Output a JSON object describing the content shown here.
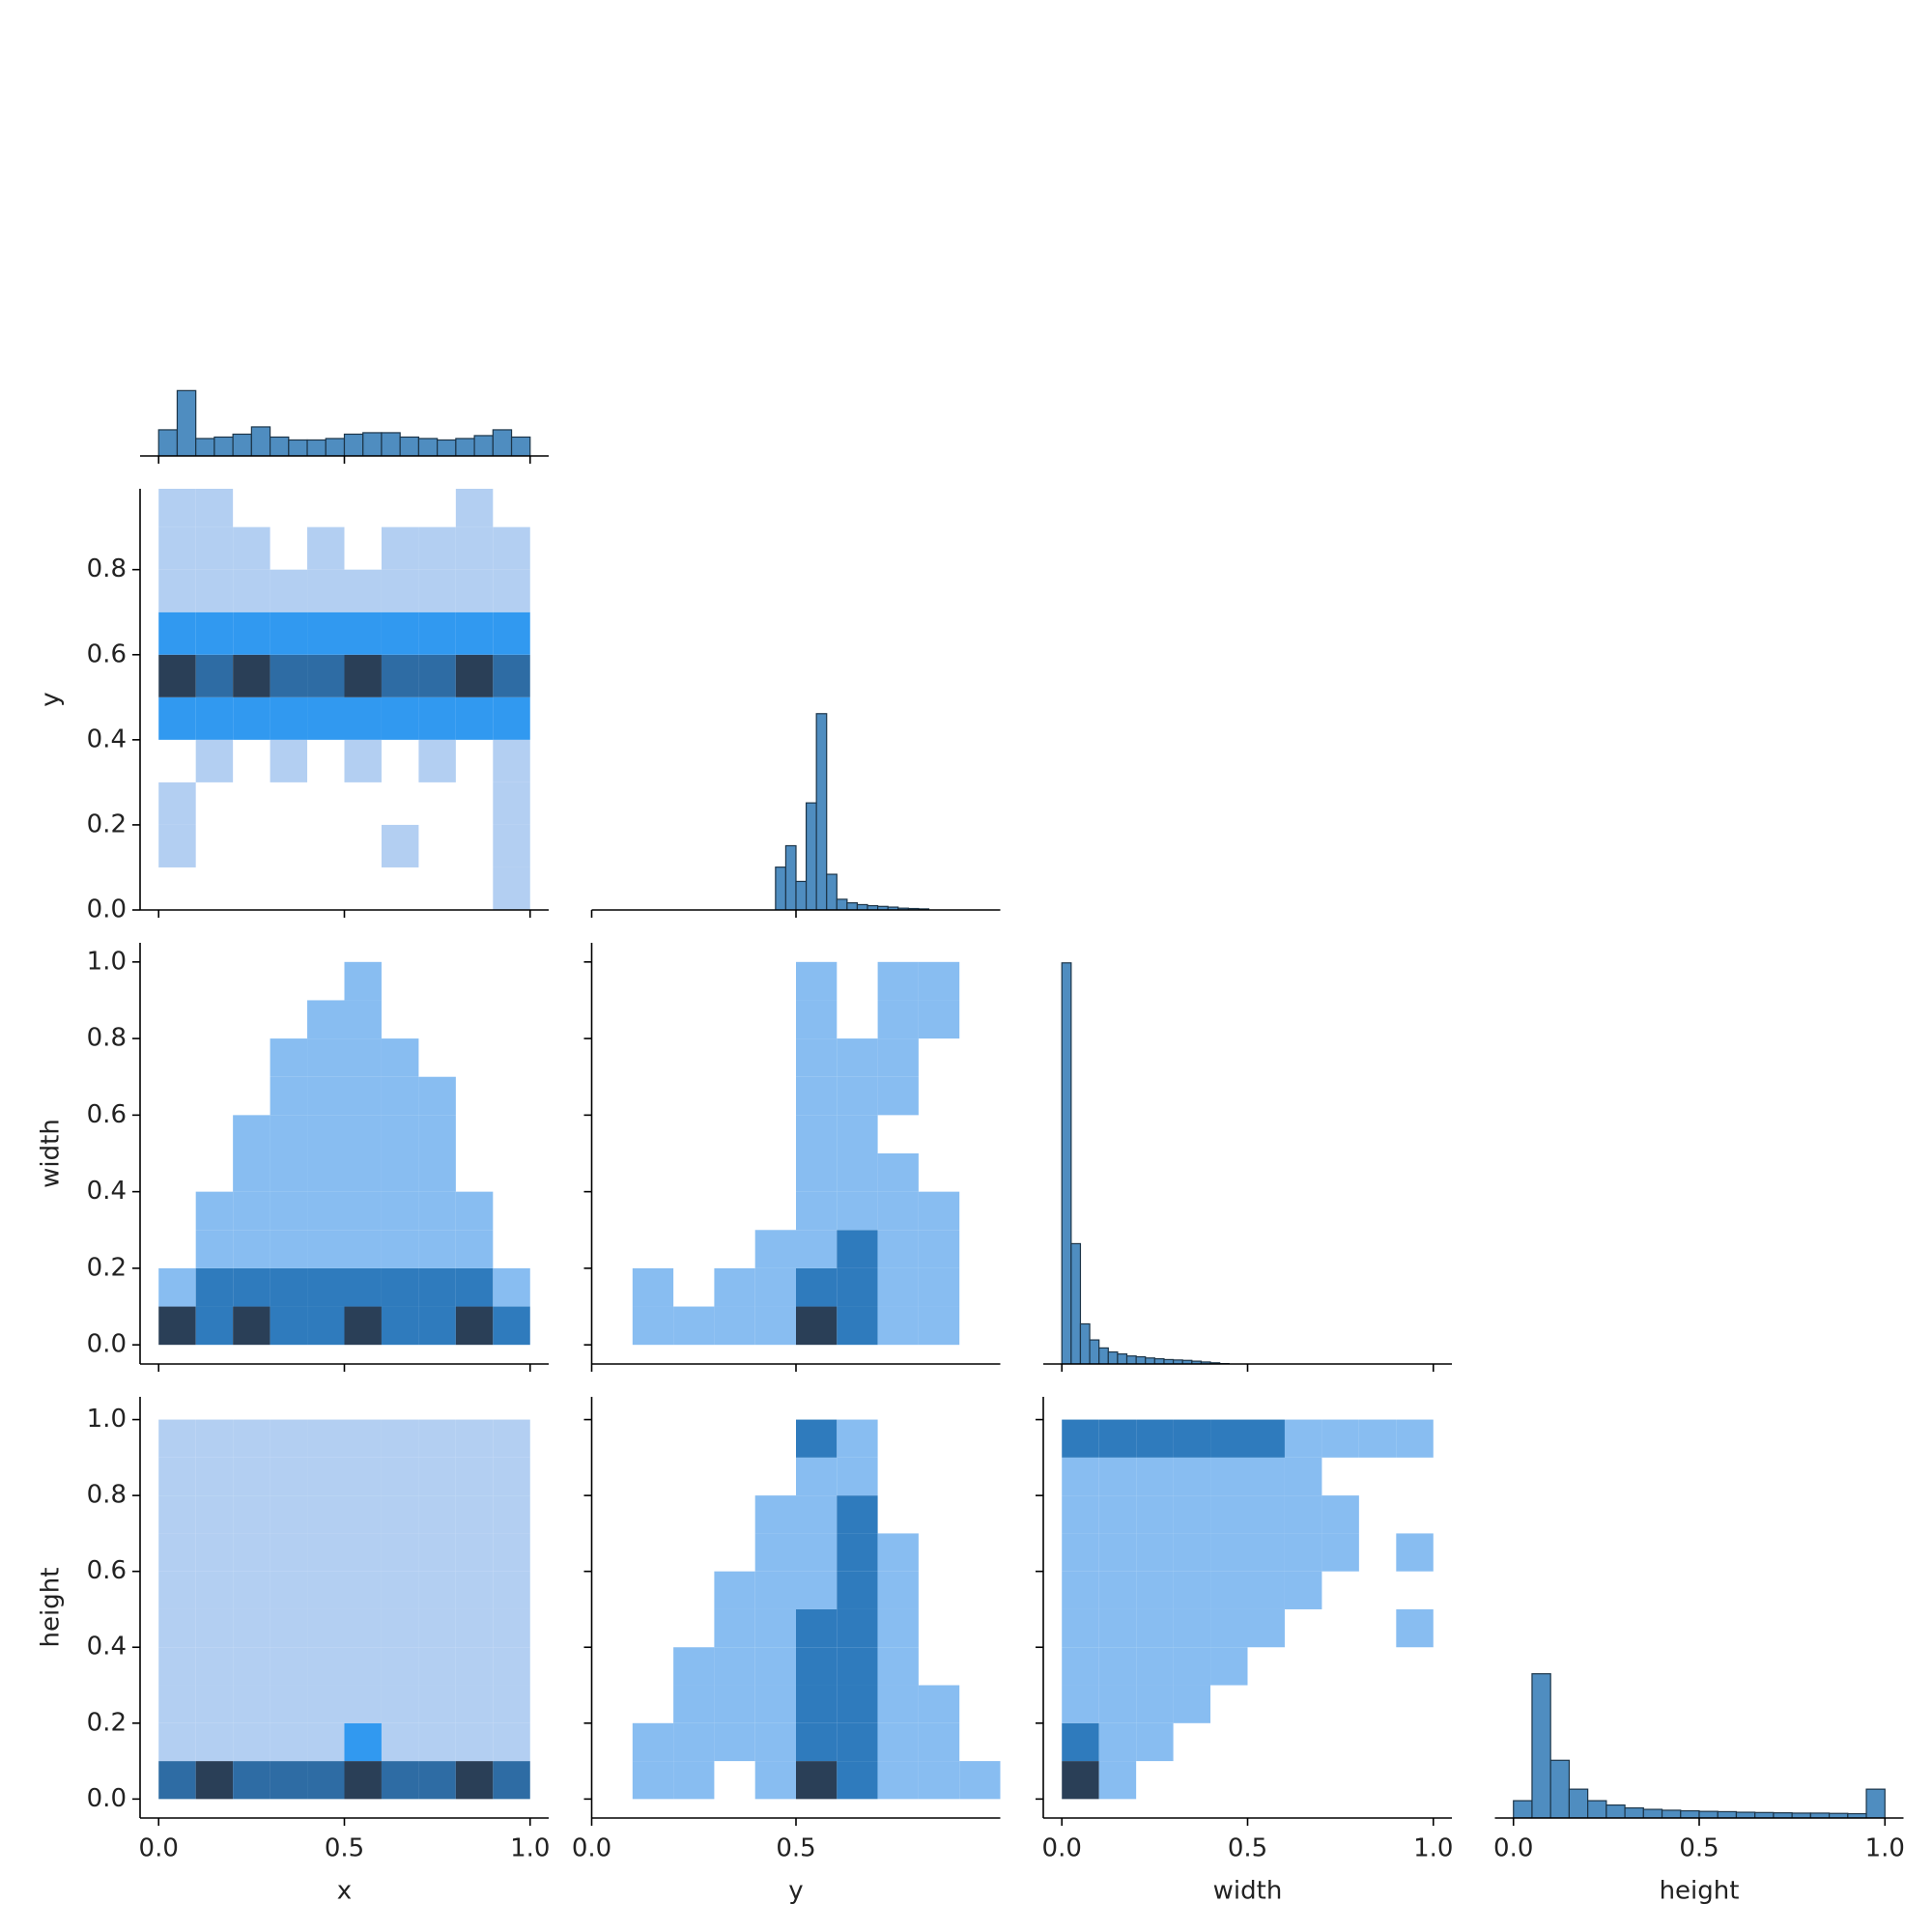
{
  "chart_data": [
    {
      "type": "histogram",
      "color": "#4f8dc0",
      "edgecolor": "#1c3549",
      "bins": [
        0,
        0.05,
        0.1,
        0.15,
        0.2,
        0.25,
        0.3,
        0.35,
        0.4,
        0.45,
        0.5,
        0.55,
        0.6,
        0.65,
        0.7,
        0.75,
        0.8,
        0.85,
        0.9,
        0.95,
        1.0
      ],
      "values": [
        18,
        45,
        12,
        13,
        15,
        20,
        13,
        11,
        11,
        12,
        15,
        16,
        16,
        13,
        12,
        11,
        12,
        14,
        18,
        13
      ],
      "xlim": [
        -0.05,
        1.05
      ],
      "ylim": [
        0,
        290
      ],
      "xticks": [
        0,
        0.5,
        1
      ]
    },
    {
      "type": "heatmap",
      "colormap": [
        "#b3cff2",
        "#3199f0",
        "#2a3f57"
      ],
      "xbins": [
        0,
        0.1,
        0.2,
        0.3,
        0.4,
        0.5,
        0.6,
        0.7,
        0.8,
        0.9,
        1.0
      ],
      "ybins": [
        0,
        0.1,
        0.2,
        0.3,
        0.4,
        0.5,
        0.6,
        0.7,
        0.8,
        0.9,
        1.0
      ],
      "counts": [
        [
          0,
          0,
          0,
          0,
          0,
          0,
          0,
          0,
          0,
          1
        ],
        [
          1,
          0,
          0,
          0,
          0,
          0,
          1,
          0,
          0,
          1
        ],
        [
          1,
          0,
          0,
          0,
          0,
          0,
          0,
          0,
          0,
          1
        ],
        [
          0,
          1,
          0,
          1,
          0,
          1,
          0,
          1,
          0,
          1
        ],
        [
          2,
          2,
          2,
          2,
          2,
          2,
          2,
          2,
          2,
          2
        ],
        [
          4,
          3,
          4,
          3,
          3,
          4,
          3,
          3,
          4,
          3
        ],
        [
          2,
          2,
          2,
          2,
          2,
          2,
          2,
          2,
          2,
          2
        ],
        [
          1,
          1,
          1,
          1,
          1,
          1,
          1,
          1,
          1,
          1
        ],
        [
          1,
          1,
          1,
          0,
          1,
          0,
          1,
          1,
          1,
          1
        ],
        [
          1,
          1,
          0,
          0,
          0,
          0,
          0,
          0,
          1,
          0
        ]
      ],
      "xlim": [
        -0.05,
        1.05
      ],
      "ylim": [
        0,
        0.99
      ],
      "xticks": [
        0,
        0.5,
        1
      ],
      "yticks": [
        {
          "value": 0,
          "label": "0.0"
        },
        0.2,
        0.4,
        0.6,
        0.8
      ],
      "ylabel": "y"
    },
    {
      "type": "histogram",
      "color": "#4f8dc0",
      "edgecolor": "#1c3549",
      "bins": [
        0.45,
        0.475,
        0.5,
        0.525,
        0.55,
        0.575,
        0.6,
        0.625,
        0.65,
        0.675,
        0.7,
        0.725,
        0.75,
        0.775,
        0.8,
        0.825
      ],
      "values": [
        12,
        18,
        8,
        30,
        55,
        10,
        3,
        2,
        1.5,
        1.2,
        1,
        0.8,
        0.5,
        0.4,
        0.3
      ],
      "xlim": [
        0,
        1.0
      ],
      "ylim": [
        0,
        118
      ],
      "xticks": [
        0,
        0.5
      ]
    },
    {
      "type": "heatmap",
      "colormap": [
        "#b3cff2",
        "#3199f0",
        "#2a3f57"
      ],
      "xbins": [
        0,
        0.1,
        0.2,
        0.3,
        0.4,
        0.5,
        0.6,
        0.7,
        0.8,
        0.9,
        1.0
      ],
      "ybins": [
        0,
        0.1,
        0.2,
        0.3,
        0.4,
        0.5,
        0.6,
        0.7,
        0.8,
        0.9,
        1.0
      ],
      "counts": [
        [
          3,
          2,
          3,
          2,
          2,
          3,
          2,
          2,
          3,
          2
        ],
        [
          1,
          2,
          2,
          2,
          2,
          2,
          2,
          2,
          2,
          1
        ],
        [
          0,
          1,
          1,
          1,
          1,
          1,
          1,
          1,
          1,
          0
        ],
        [
          0,
          1,
          1,
          1,
          1,
          1,
          1,
          1,
          1,
          0
        ],
        [
          0,
          0,
          1,
          1,
          1,
          1,
          1,
          1,
          0,
          0
        ],
        [
          0,
          0,
          1,
          1,
          1,
          1,
          1,
          1,
          0,
          0
        ],
        [
          0,
          0,
          0,
          1,
          1,
          1,
          1,
          1,
          0,
          0
        ],
        [
          0,
          0,
          0,
          1,
          1,
          1,
          1,
          0,
          0,
          0
        ],
        [
          0,
          0,
          0,
          0,
          1,
          1,
          0,
          0,
          0,
          0
        ],
        [
          0,
          0,
          0,
          0,
          0,
          1,
          0,
          0,
          0,
          0
        ]
      ],
      "xlim": [
        -0.05,
        1.05
      ],
      "ylim": [
        -0.05,
        1.05
      ],
      "xticks": [
        0,
        0.5,
        1
      ],
      "yticks": [
        {
          "value": 0,
          "label": "0.0"
        },
        0.2,
        0.4,
        0.6,
        0.8,
        {
          "value": 1,
          "label": "1.0"
        }
      ],
      "ylabel": "width"
    },
    {
      "type": "heatmap",
      "colormap": [
        "#b3cff2",
        "#3199f0",
        "#2a3f57"
      ],
      "xbins": [
        0,
        0.1,
        0.2,
        0.3,
        0.4,
        0.5,
        0.6,
        0.7,
        0.8,
        0.9,
        1.0
      ],
      "ybins": [
        0,
        0.1,
        0.2,
        0.3,
        0.4,
        0.5,
        0.6,
        0.7,
        0.8,
        0.9,
        1.0
      ],
      "counts": [
        [
          0,
          1,
          1,
          1,
          1,
          3,
          2,
          1,
          1,
          0
        ],
        [
          0,
          1,
          0,
          1,
          1,
          2,
          2,
          1,
          1,
          0
        ],
        [
          0,
          0,
          0,
          0,
          1,
          1,
          2,
          1,
          1,
          0
        ],
        [
          0,
          0,
          0,
          0,
          0,
          1,
          1,
          1,
          1,
          0
        ],
        [
          0,
          0,
          0,
          0,
          0,
          1,
          1,
          1,
          0,
          0
        ],
        [
          0,
          0,
          0,
          0,
          0,
          1,
          1,
          0,
          0,
          0
        ],
        [
          0,
          0,
          0,
          0,
          0,
          1,
          1,
          1,
          0,
          0
        ],
        [
          0,
          0,
          0,
          0,
          0,
          1,
          1,
          1,
          0,
          0
        ],
        [
          0,
          0,
          0,
          0,
          0,
          1,
          0,
          1,
          1,
          0
        ],
        [
          0,
          0,
          0,
          0,
          0,
          1,
          0,
          1,
          1,
          0
        ]
      ],
      "xlim": [
        0,
        1.0
      ],
      "ylim": [
        -0.05,
        1.05
      ],
      "xticks": [
        0,
        0.5
      ],
      "yticks": [
        0,
        0.2,
        0.4,
        0.6,
        0.8,
        1
      ]
    },
    {
      "type": "histogram",
      "color": "#4f8dc0",
      "edgecolor": "#1c3549",
      "bins": [
        0,
        0.025,
        0.05,
        0.075,
        0.1,
        0.125,
        0.15,
        0.175,
        0.2,
        0.225,
        0.25,
        0.275,
        0.3,
        0.325,
        0.35,
        0.375,
        0.4,
        0.425,
        0.45
      ],
      "values": [
        100,
        30,
        10,
        6,
        4,
        3,
        2.5,
        2,
        1.8,
        1.5,
        1.3,
        1.1,
        1,
        0.9,
        0.7,
        0.5,
        0.3,
        0.1
      ],
      "xlim": [
        -0.05,
        1.05
      ],
      "ylim": [
        0,
        105
      ],
      "xticks": [
        0,
        0.5,
        1
      ]
    },
    {
      "type": "heatmap",
      "colormap": [
        "#b3cff2",
        "#3199f0",
        "#2a3f57"
      ],
      "xbins": [
        0,
        0.1,
        0.2,
        0.3,
        0.4,
        0.5,
        0.6,
        0.7,
        0.8,
        0.9,
        1.0
      ],
      "ybins": [
        0,
        0.1,
        0.2,
        0.3,
        0.4,
        0.5,
        0.6,
        0.7,
        0.8,
        0.9,
        1.0
      ],
      "counts": [
        [
          3,
          4,
          3,
          3,
          3,
          4,
          3,
          3,
          4,
          3
        ],
        [
          1,
          1,
          1,
          1,
          1,
          2,
          1,
          1,
          1,
          1
        ],
        [
          1,
          1,
          1,
          1,
          1,
          1,
          1,
          1,
          1,
          1
        ],
        [
          1,
          1,
          1,
          1,
          1,
          1,
          1,
          1,
          1,
          1
        ],
        [
          1,
          1,
          1,
          1,
          1,
          1,
          1,
          1,
          1,
          1
        ],
        [
          1,
          1,
          1,
          1,
          1,
          1,
          1,
          1,
          1,
          1
        ],
        [
          1,
          1,
          1,
          1,
          1,
          1,
          1,
          1,
          1,
          1
        ],
        [
          1,
          1,
          1,
          1,
          1,
          1,
          1,
          1,
          1,
          1
        ],
        [
          1,
          1,
          1,
          1,
          1,
          1,
          1,
          1,
          1,
          1
        ],
        [
          1,
          1,
          1,
          1,
          1,
          1,
          1,
          1,
          1,
          1
        ]
      ],
      "xlim": [
        -0.05,
        1.05
      ],
      "ylim": [
        -0.05,
        1.06
      ],
      "xticks": [
        {
          "value": 0,
          "label": "0.0"
        },
        0.5,
        {
          "value": 1,
          "label": "1.0"
        }
      ],
      "yticks": [
        {
          "value": 0,
          "label": "0.0"
        },
        0.2,
        0.4,
        0.6,
        0.8,
        {
          "value": 1,
          "label": "1.0"
        }
      ],
      "xlabel": "x",
      "ylabel": "height"
    },
    {
      "type": "heatmap",
      "colormap": [
        "#b3cff2",
        "#3199f0",
        "#2a3f57"
      ],
      "xbins": [
        0,
        0.1,
        0.2,
        0.3,
        0.4,
        0.5,
        0.6,
        0.7,
        0.8,
        0.9,
        1.0
      ],
      "ybins": [
        0,
        0.1,
        0.2,
        0.3,
        0.4,
        0.5,
        0.6,
        0.7,
        0.8,
        0.9,
        1.0
      ],
      "counts": [
        [
          0,
          1,
          1,
          0,
          1,
          3,
          2,
          1,
          1,
          1
        ],
        [
          0,
          1,
          1,
          1,
          1,
          2,
          2,
          1,
          1,
          0
        ],
        [
          0,
          0,
          1,
          1,
          1,
          2,
          2,
          1,
          1,
          0
        ],
        [
          0,
          0,
          1,
          1,
          1,
          2,
          2,
          1,
          0,
          0
        ],
        [
          0,
          0,
          0,
          1,
          1,
          2,
          2,
          1,
          0,
          0
        ],
        [
          0,
          0,
          0,
          1,
          1,
          1,
          2,
          1,
          0,
          0
        ],
        [
          0,
          0,
          0,
          0,
          1,
          1,
          2,
          1,
          0,
          0
        ],
        [
          0,
          0,
          0,
          0,
          1,
          1,
          2,
          0,
          0,
          0
        ],
        [
          0,
          0,
          0,
          0,
          0,
          1,
          1,
          0,
          0,
          0
        ],
        [
          0,
          0,
          0,
          0,
          0,
          2,
          1,
          0,
          0,
          0
        ]
      ],
      "xlim": [
        0,
        1.0
      ],
      "ylim": [
        -0.05,
        1.06
      ],
      "xticks": [
        {
          "value": 0,
          "label": "0.0"
        },
        0.5
      ],
      "yticks": [
        0,
        0.2,
        0.4,
        0.6,
        0.8,
        1
      ],
      "xlabel": "y"
    },
    {
      "type": "heatmap",
      "colormap": [
        "#b3cff2",
        "#3199f0",
        "#2a3f57"
      ],
      "xbins": [
        0,
        0.1,
        0.2,
        0.3,
        0.4,
        0.5,
        0.6,
        0.7,
        0.8,
        0.9,
        1.0
      ],
      "ybins": [
        0,
        0.1,
        0.2,
        0.3,
        0.4,
        0.5,
        0.6,
        0.7,
        0.8,
        0.9,
        1.0
      ],
      "counts": [
        [
          3,
          1,
          0,
          0,
          0,
          0,
          0,
          0,
          0,
          0
        ],
        [
          2,
          1,
          1,
          0,
          0,
          0,
          0,
          0,
          0,
          0
        ],
        [
          1,
          1,
          1,
          1,
          0,
          0,
          0,
          0,
          0,
          0
        ],
        [
          1,
          1,
          1,
          1,
          1,
          0,
          0,
          0,
          0,
          0
        ],
        [
          1,
          1,
          1,
          1,
          1,
          1,
          0,
          0,
          0,
          1
        ],
        [
          1,
          1,
          1,
          1,
          1,
          1,
          1,
          0,
          0,
          0
        ],
        [
          1,
          1,
          1,
          1,
          1,
          1,
          1,
          1,
          0,
          1
        ],
        [
          1,
          1,
          1,
          1,
          1,
          1,
          1,
          1,
          0,
          0
        ],
        [
          1,
          1,
          1,
          1,
          1,
          1,
          1,
          0,
          0,
          0
        ],
        [
          2,
          2,
          2,
          2,
          2,
          2,
          1,
          1,
          1,
          1
        ]
      ],
      "xlim": [
        -0.05,
        1.05
      ],
      "ylim": [
        -0.05,
        1.06
      ],
      "xticks": [
        {
          "value": 0,
          "label": "0.0"
        },
        0.5,
        {
          "value": 1,
          "label": "1.0"
        }
      ],
      "yticks": [
        0,
        0.2,
        0.4,
        0.6,
        0.8,
        1
      ],
      "xlabel": "width"
    },
    {
      "type": "histogram",
      "color": "#4f8dc0",
      "edgecolor": "#1c3549",
      "bins": [
        0,
        0.05,
        0.1,
        0.15,
        0.2,
        0.25,
        0.3,
        0.35,
        0.4,
        0.45,
        0.5,
        0.55,
        0.6,
        0.65,
        0.7,
        0.75,
        0.8,
        0.85,
        0.9,
        0.95,
        1.0
      ],
      "values": [
        6,
        50,
        20,
        10,
        6,
        4.5,
        3.5,
        3,
        2.7,
        2.5,
        2.3,
        2.2,
        2,
        1.9,
        1.8,
        1.7,
        1.7,
        1.6,
        1.5,
        10
      ],
      "xlim": [
        -0.05,
        1.05
      ],
      "ylim": [
        0,
        146
      ],
      "xticks": [
        {
          "value": 0,
          "label": "0.0"
        },
        0.5,
        {
          "value": 1,
          "label": "1.0"
        }
      ],
      "xlabel": "height"
    }
  ]
}
